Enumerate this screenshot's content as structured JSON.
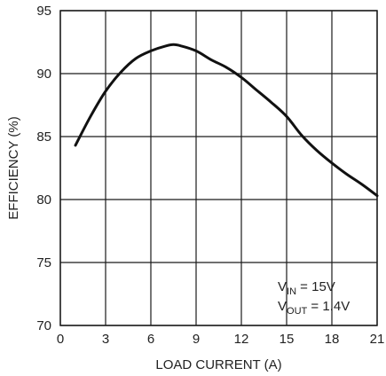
{
  "chart_data": {
    "type": "line",
    "xlabel": "LOAD CURRENT (A)",
    "ylabel": "EFFICIENCY (%)",
    "xlim": [
      0,
      21
    ],
    "ylim": [
      70,
      95
    ],
    "xticks": [
      "0",
      "3",
      "6",
      "9",
      "12",
      "15",
      "18",
      "21"
    ],
    "yticks": [
      "70",
      "75",
      "80",
      "85",
      "90",
      "95"
    ],
    "grid": true,
    "annotations": [
      {
        "main": "V",
        "sub": "IN",
        "rest": " = 15V"
      },
      {
        "main": "V",
        "sub": "OUT",
        "rest": " = 1.4V"
      }
    ],
    "series": [
      {
        "x": [
          1,
          2,
          3,
          4,
          5,
          6,
          7,
          7.5,
          8,
          9,
          10,
          11,
          12,
          13,
          14,
          15,
          16,
          17,
          18,
          19,
          20,
          21
        ],
        "values": [
          84.3,
          86.6,
          88.6,
          90.1,
          91.2,
          91.8,
          92.2,
          92.3,
          92.2,
          91.8,
          91.1,
          90.5,
          89.7,
          88.7,
          87.7,
          86.6,
          85.1,
          83.9,
          82.9,
          82.0,
          81.2,
          80.3
        ]
      }
    ]
  }
}
